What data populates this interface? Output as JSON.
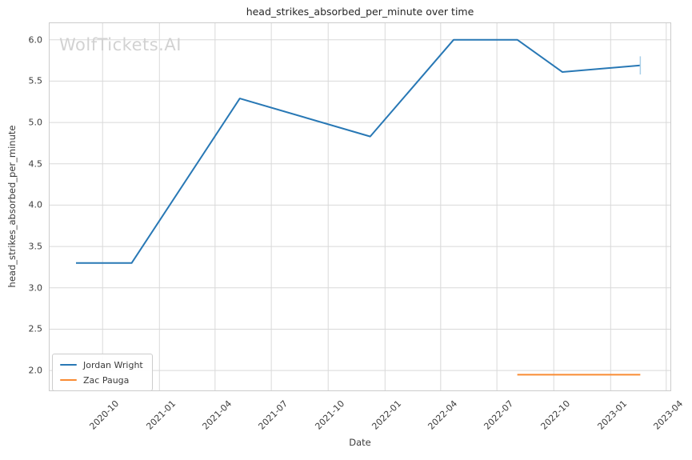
{
  "title": "head_strikes_absorbed_per_minute over time",
  "watermark": "WolfTickets.AI",
  "colors": {
    "series_blue": "#2878b5",
    "series_orange": "#f98b33",
    "end_cap_blue": "#a9cfe8",
    "gridline": "#d9d9d9",
    "plot_border": "#cccccc",
    "text_dark": "#262626",
    "text_tick": "#3b3b3b",
    "watermark_gray": "#d2d2d2"
  },
  "chart_data": {
    "type": "line",
    "title": "head_strikes_absorbed_per_minute over time",
    "xlabel": "Date",
    "ylabel": "head_strikes_absorbed_per_minute",
    "grid": true,
    "legend_position": "lower left",
    "x_tick_labels": [
      "2020-10",
      "2021-01",
      "2021-04",
      "2021-07",
      "2021-10",
      "2022-01",
      "2022-04",
      "2022-07",
      "2022-10",
      "2023-01",
      "2023-04"
    ],
    "y_ticks": [
      2.0,
      2.5,
      3.0,
      3.5,
      4.0,
      4.5,
      5.0,
      5.5,
      6.0
    ],
    "ylim": [
      1.75,
      6.21
    ],
    "xlim": [
      "2020-07-06",
      "2023-04-09"
    ],
    "series": [
      {
        "name": "Jordan Wright",
        "color_key": "series_blue",
        "x": [
          "2020-08-19",
          "2020-11-17",
          "2021-05-11",
          "2021-12-08",
          "2022-04-22",
          "2022-08-03",
          "2022-10-15",
          "2023-02-18"
        ],
        "y": [
          3.3,
          3.3,
          5.29,
          4.83,
          6.0,
          6.0,
          5.61,
          5.69
        ]
      },
      {
        "name": "Zac Pauga",
        "color_key": "series_orange",
        "x": [
          "2022-08-03",
          "2023-02-18"
        ],
        "y": [
          1.95,
          1.95
        ]
      }
    ],
    "end_marker": {
      "series": "Jordan Wright",
      "date": "2023-02-18",
      "y_center": 5.69,
      "y_half_span": 0.11,
      "color_key": "end_cap_blue"
    }
  }
}
